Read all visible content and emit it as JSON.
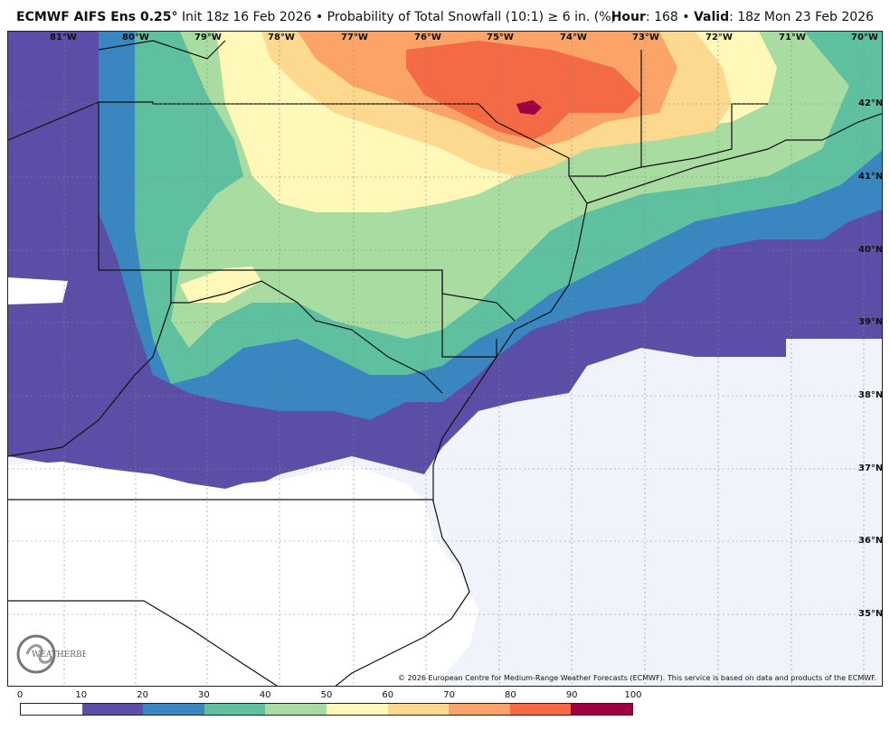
{
  "header": {
    "model": "ECMWF AIFS Ens 0.25",
    "degree": "°",
    "description": " Init 18z 16 Feb 2026 • Probability of Total Snowfall (10:1) ≥ 6 in. (%)",
    "hour_label": "Hour",
    "hour_value": ": 168 • ",
    "valid_label": "Valid",
    "valid_value": ": 18z Mon 23 Feb 2026"
  },
  "map": {
    "longitudes": [
      "81°W",
      "80°W",
      "79°W",
      "78°W",
      "77°W",
      "76°W",
      "75°W",
      "74°W",
      "73°W",
      "72°W",
      "71°W",
      "70°W"
    ],
    "latitudes": [
      "42°N",
      "41°N",
      "40°N",
      "39°N",
      "38°N",
      "37°N",
      "36°N",
      "35°N"
    ],
    "copyright": "© 2026 European Centre for Medium-Range Weather Forecasts (ECMWF). This service is based on data and products of the ECMWF.",
    "logo_text": "WEATHERBELL"
  },
  "legend": {
    "ticks": [
      "0",
      "10",
      "20",
      "30",
      "40",
      "50",
      "60",
      "70",
      "80",
      "90",
      "100"
    ],
    "colors": [
      "#ffffff",
      "#5b4ea6",
      "#3a86c0",
      "#5fc0a0",
      "#a8dca0",
      "#fff8b8",
      "#fdd990",
      "#fca468",
      "#f46a44",
      "#9c0040"
    ]
  },
  "colors": {
    "no_snow": "#f0f4fa",
    "lt10": "#ffffff"
  }
}
